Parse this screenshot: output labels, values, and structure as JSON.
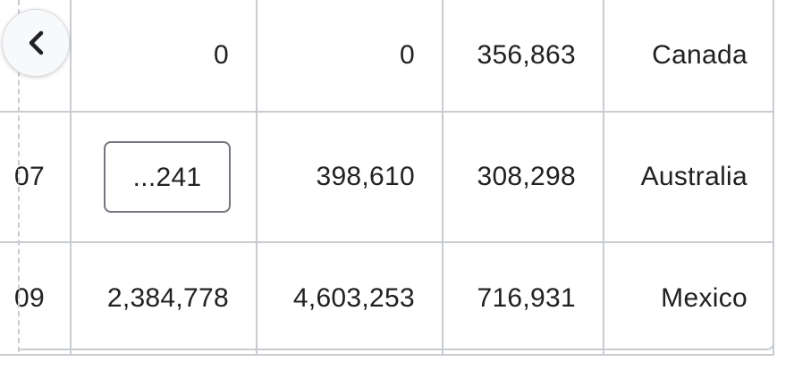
{
  "table": {
    "rows": [
      {
        "rank": "",
        "col1": "0",
        "col2": "0",
        "col3": "356,863",
        "country": "Canada",
        "col1_boxed": false
      },
      {
        "rank": "07",
        "col1": "...241",
        "col2": "398,610",
        "col3": "308,298",
        "country": "Australia",
        "col1_boxed": true
      },
      {
        "rank": "09",
        "col1": "2,384,778",
        "col2": "4,603,253",
        "col3": "716,931",
        "country": "Mexico",
        "col1_boxed": false
      }
    ]
  },
  "nav": {
    "back_icon": "chevron-left-icon"
  }
}
